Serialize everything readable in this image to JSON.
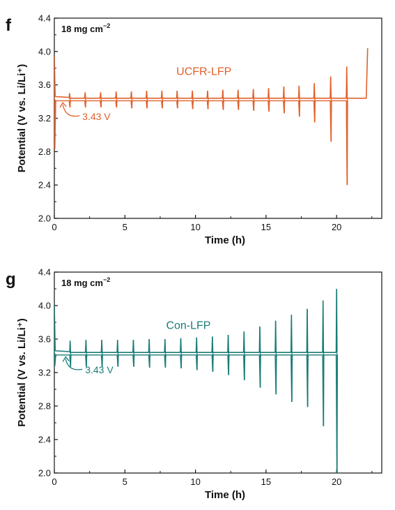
{
  "chart_data": [
    {
      "type": "line",
      "panel_label": "f",
      "loading_text": "18 mg cm",
      "loading_exponent": "−2",
      "xlabel": "Time (h)",
      "ylabel": "Potential (V vs. Li/Li⁺)",
      "xlim": [
        0,
        23.2
      ],
      "ylim": [
        2.0,
        4.4
      ],
      "x_ticks": [
        "0",
        "5",
        "10",
        "15",
        "20"
      ],
      "y_ticks": [
        "2.0",
        "2.4",
        "2.8",
        "3.2",
        "3.6",
        "4.0",
        "4.4"
      ],
      "color": "#e0602a",
      "series": [
        {
          "name": "UCFR-LFP",
          "plateau_v": 3.43,
          "cycle_times_h": [
            0,
            1.08,
            2.18,
            3.28,
            4.38,
            5.46,
            6.54,
            7.62,
            8.7,
            9.78,
            10.86,
            11.94,
            13.02,
            14.1,
            15.18,
            16.26,
            17.34,
            18.42,
            19.58,
            20.72
          ],
          "charge_peak_v": [
            3.95,
            3.5,
            3.51,
            3.51,
            3.52,
            3.52,
            3.53,
            3.53,
            3.53,
            3.53,
            3.53,
            3.54,
            3.54,
            3.55,
            3.56,
            3.58,
            3.59,
            3.62,
            3.7,
            3.82
          ],
          "discharge_min_v": [
            2.83,
            3.33,
            3.33,
            3.33,
            3.33,
            3.32,
            3.32,
            3.32,
            3.32,
            3.31,
            3.31,
            3.3,
            3.3,
            3.29,
            3.28,
            3.26,
            3.22,
            3.15,
            2.92,
            2.4
          ],
          "end_time_h": 22.2,
          "end_v": 4.04
        }
      ],
      "annotation": {
        "text": "3.43 V",
        "x": 0.6,
        "y": 3.43
      }
    },
    {
      "type": "line",
      "panel_label": "g",
      "loading_text": "18 mg cm",
      "loading_exponent": "−2",
      "xlabel": "Time (h)",
      "ylabel": "Potential (V vs. Li/Li⁺)",
      "xlim": [
        0,
        23.2
      ],
      "ylim": [
        2.0,
        4.4
      ],
      "x_ticks": [
        "0",
        "5",
        "10",
        "15",
        "20"
      ],
      "y_ticks": [
        "2.0",
        "2.4",
        "2.8",
        "3.2",
        "3.6",
        "4.0",
        "4.4"
      ],
      "color": "#1a7c78",
      "series": [
        {
          "name": "Con-LFP",
          "plateau_v": 3.43,
          "cycle_times_h": [
            0,
            1.12,
            2.24,
            3.36,
            4.48,
            5.6,
            6.72,
            7.84,
            8.96,
            10.08,
            11.2,
            12.32,
            13.44,
            14.56,
            15.68,
            16.8,
            17.92,
            19.04,
            20.0
          ],
          "charge_peak_v": [
            4.0,
            3.58,
            3.59,
            3.59,
            3.59,
            3.59,
            3.6,
            3.6,
            3.61,
            3.62,
            3.63,
            3.65,
            3.69,
            3.75,
            3.82,
            3.89,
            3.96,
            4.06,
            4.2
          ],
          "discharge_min_v": [
            3.28,
            3.27,
            3.27,
            3.27,
            3.27,
            3.27,
            3.26,
            3.26,
            3.25,
            3.23,
            3.21,
            3.17,
            3.11,
            3.02,
            2.94,
            2.85,
            2.79,
            2.56,
            2.0
          ],
          "end_time_h": 20.0,
          "end_v": 3.43
        }
      ],
      "annotation": {
        "text": "3.43 V",
        "x": 0.8,
        "y": 3.43
      }
    }
  ]
}
